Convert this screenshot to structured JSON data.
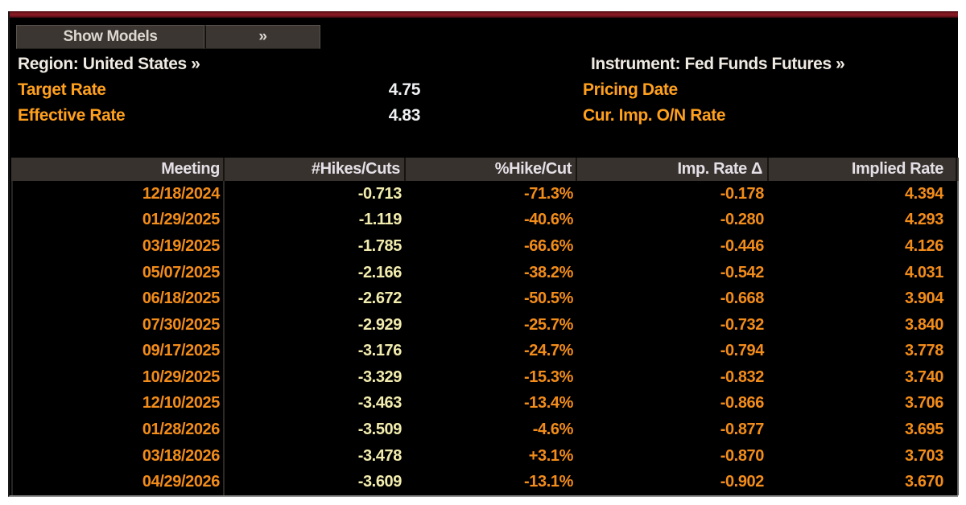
{
  "app": {
    "name": "rates-probability-terminal-screen"
  },
  "colors": {
    "title_bar_red": "#8d1b26",
    "panel_bg": "#000000",
    "amber_label": "#ffa01e",
    "orange_value": "#f28c1a",
    "pale_yellow_value": "#f2ecae",
    "white_text": "#efeae2",
    "header_bg": "#37322d",
    "button_bg": "#3b3631"
  },
  "toolbar": {
    "show_models_label": "Show Models",
    "expand_label": "»"
  },
  "info": {
    "region_label": "Region: United States »",
    "instrument_label": "Instrument: Fed Funds Futures »",
    "target_rate_label": "Target Rate",
    "target_rate_value": "4.75",
    "effective_rate_label": "Effective Rate",
    "effective_rate_value": "4.83",
    "pricing_date_label": "Pricing Date",
    "cur_imp_on_rate_label": "Cur. Imp. O/N Rate"
  },
  "table": {
    "columns": [
      "Meeting",
      "#Hikes/Cuts",
      "%Hike/Cut",
      "Imp. Rate Δ",
      "Implied Rate"
    ],
    "rows": [
      [
        "12/18/2024",
        "-0.713",
        "-71.3%",
        "-0.178",
        "4.394"
      ],
      [
        "01/29/2025",
        "-1.119",
        "-40.6%",
        "-0.280",
        "4.293"
      ],
      [
        "03/19/2025",
        "-1.785",
        "-66.6%",
        "-0.446",
        "4.126"
      ],
      [
        "05/07/2025",
        "-2.166",
        "-38.2%",
        "-0.542",
        "4.031"
      ],
      [
        "06/18/2025",
        "-2.672",
        "-50.5%",
        "-0.668",
        "3.904"
      ],
      [
        "07/30/2025",
        "-2.929",
        "-25.7%",
        "-0.732",
        "3.840"
      ],
      [
        "09/17/2025",
        "-3.176",
        "-24.7%",
        "-0.794",
        "3.778"
      ],
      [
        "10/29/2025",
        "-3.329",
        "-15.3%",
        "-0.832",
        "3.740"
      ],
      [
        "12/10/2025",
        "-3.463",
        "-13.4%",
        "-0.866",
        "3.706"
      ],
      [
        "01/28/2026",
        "-3.509",
        "-4.6%",
        "-0.877",
        "3.695"
      ],
      [
        "03/18/2026",
        "-3.478",
        "+3.1%",
        "-0.870",
        "3.703"
      ],
      [
        "04/29/2026",
        "-3.609",
        "-13.1%",
        "-0.902",
        "3.670"
      ]
    ]
  }
}
